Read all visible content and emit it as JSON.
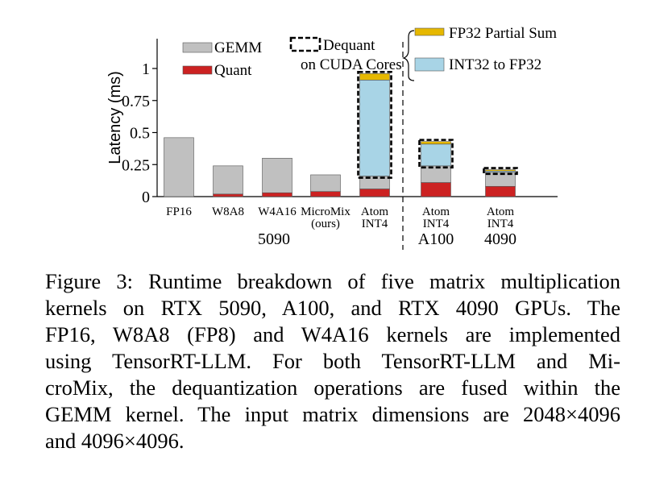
{
  "chart_data": {
    "type": "bar",
    "stacked": true,
    "ylabel": "Latency (ms)",
    "ylim": [
      0,
      1.1
    ],
    "yticks": [
      0,
      0.25,
      0.5,
      0.75,
      1
    ],
    "ytick_labels": [
      "0",
      "0.25",
      "0.5",
      "0.75",
      "1"
    ],
    "grid": false,
    "legend_position": "top",
    "groups": [
      {
        "label": "5090",
        "categories": [
          "FP16",
          "W8A8",
          "W4A16",
          "MicroMix (ours)",
          "Atom INT4"
        ]
      },
      {
        "label": "A100",
        "categories": [
          "Atom INT4"
        ]
      },
      {
        "label": "4090",
        "categories": [
          "Atom INT4"
        ]
      }
    ],
    "categories": [
      {
        "line1": "FP16",
        "line2": ""
      },
      {
        "line1": "W8A8",
        "line2": ""
      },
      {
        "line1": "W4A16",
        "line2": ""
      },
      {
        "line1": "MicroMix",
        "line2": "(ours)"
      },
      {
        "line1": "Atom",
        "line2": "INT4"
      },
      {
        "line1": "Atom",
        "line2": "INT4"
      },
      {
        "line1": "Atom",
        "line2": "INT4"
      }
    ],
    "series": [
      {
        "name": "Quant",
        "color": "#cc2222",
        "values": [
          0,
          0.02,
          0.03,
          0.04,
          0.06,
          0.11,
          0.08
        ]
      },
      {
        "name": "GEMM",
        "color": "#c0c0c0",
        "values": [
          0.46,
          0.22,
          0.27,
          0.13,
          0.1,
          0.13,
          0.11
        ]
      },
      {
        "name": "INT32 to FP32",
        "color": "#a8d4e6",
        "values": [
          0,
          0,
          0,
          0,
          0.75,
          0.17,
          0.01
        ]
      },
      {
        "name": "FP32 Partial Sum",
        "color": "#e6b800",
        "values": [
          0,
          0,
          0,
          0,
          0.05,
          0.02,
          0.01
        ]
      }
    ],
    "dequant_box": {
      "label_line1": "Dequant",
      "label_line2": "on CUDA Cores",
      "applies_to": [
        4,
        5,
        6
      ]
    }
  },
  "caption": {
    "lines": [
      "Figure 3: Runtime breakdown of five matrix multiplication",
      "kernels on RTX 5090, A100, and RTX 4090 GPUs. The",
      "FP16, W8A8 (FP8) and W4A16 kernels are implemented",
      "using TensorRT-LLM. For both TensorRT-LLM and Mi-",
      "croMix, the dequantization operations are fused within the",
      "GEMM kernel. The input matrix dimensions are 2048×4096",
      "and 4096×4096."
    ]
  }
}
